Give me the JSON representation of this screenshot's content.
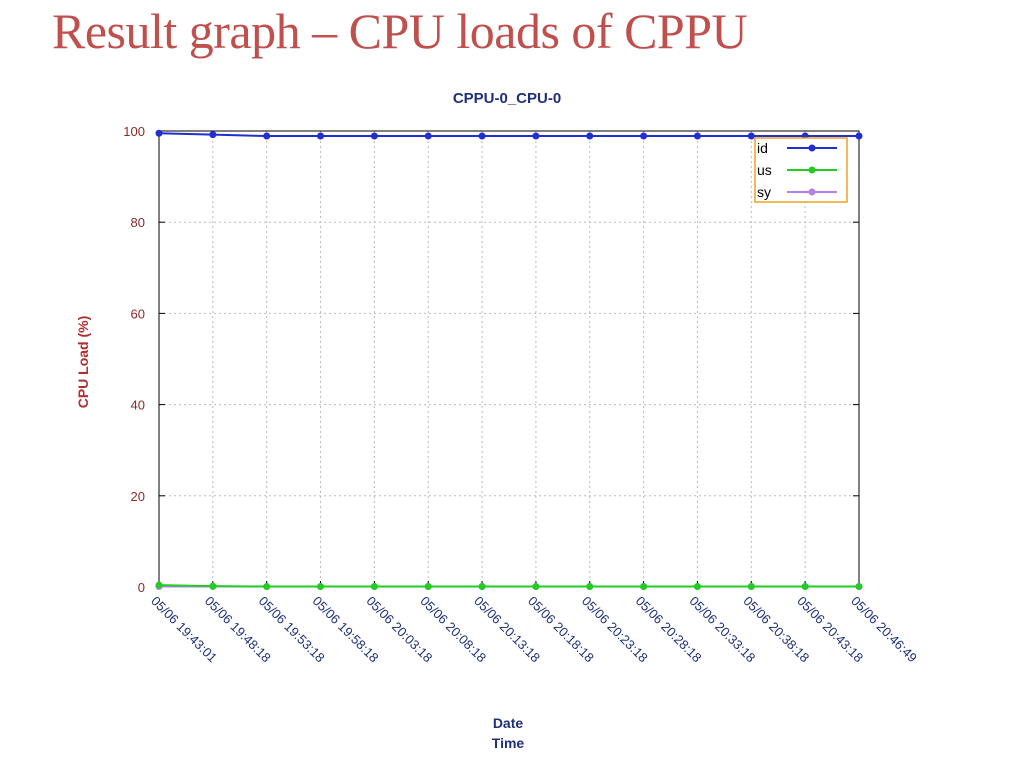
{
  "slide": {
    "title": "Result graph – CPU loads of CPPU"
  },
  "colors": {
    "title_red": "#c0504d",
    "axis_title_red": "#b03030",
    "chart_title_blue": "#1f2f7a",
    "legend_border": "#f0a020",
    "tick_label": "#8a2a2a"
  },
  "chart_data": {
    "type": "line",
    "title": "CPPU-0_CPU-0",
    "xlabel_lines": [
      "Date",
      "Time"
    ],
    "ylabel": "CPU Load (%)",
    "ylim": [
      0,
      100
    ],
    "yticks": [
      0,
      20,
      40,
      60,
      80,
      100
    ],
    "grid": true,
    "legend_position": "top-right",
    "x": [
      "05/06 19:43:01",
      "05/06 19:48:18",
      "05/06 19:53:18",
      "05/06 19:58:18",
      "05/06 20:03:18",
      "05/06 20:08:18",
      "05/06 20:13:18",
      "05/06 20:18:18",
      "05/06 20:23:18",
      "05/06 20:28:18",
      "05/06 20:33:18",
      "05/06 20:38:18",
      "05/06 20:43:18",
      "05/06 20:46:49"
    ],
    "series": [
      {
        "name": "id",
        "color": "#1f2fd0",
        "values": [
          99.5,
          99.2,
          98.9,
          98.9,
          98.9,
          98.9,
          98.9,
          98.9,
          98.9,
          98.9,
          98.9,
          98.9,
          98.9,
          98.9
        ]
      },
      {
        "name": "us",
        "color": "#22cc22",
        "values": [
          0.4,
          0.2,
          0.1,
          0.1,
          0.1,
          0.1,
          0.1,
          0.1,
          0.1,
          0.1,
          0.1,
          0.1,
          0.1,
          0.1
        ]
      },
      {
        "name": "sy",
        "color": "#b77ef0",
        "values": [
          0.1,
          0.1,
          0.1,
          0.1,
          0.1,
          0.1,
          0.1,
          0.1,
          0.1,
          0.1,
          0.1,
          0.1,
          0.1,
          0.1
        ]
      }
    ]
  }
}
